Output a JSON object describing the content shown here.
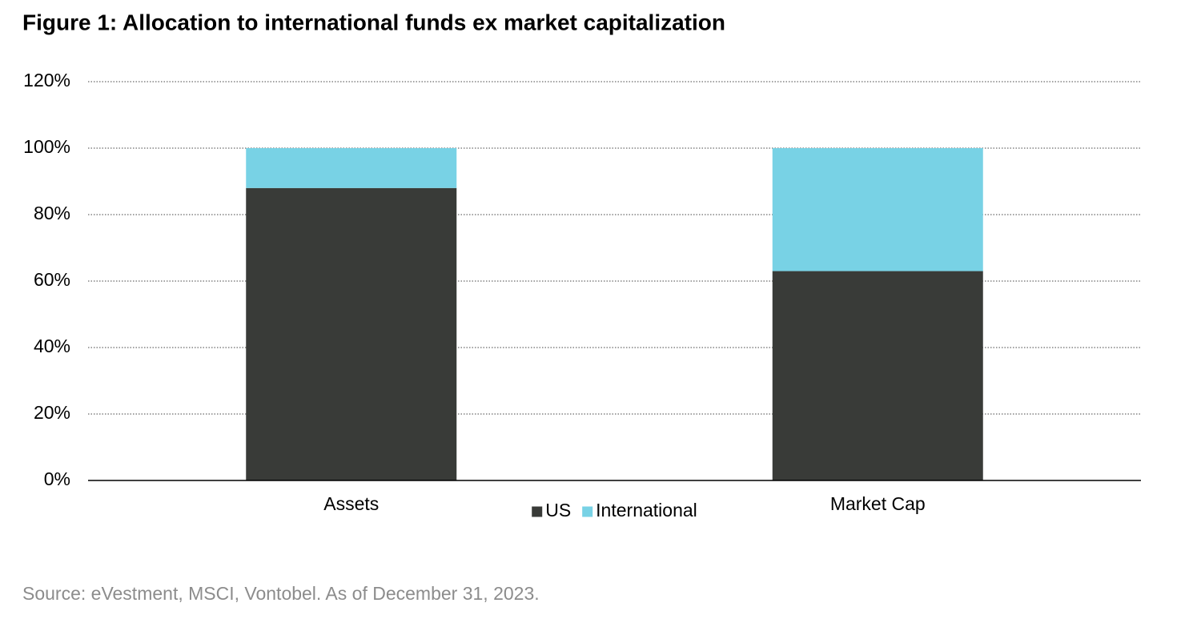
{
  "chart_data": {
    "type": "stacked_bar",
    "title": "Figure 1: Allocation to international funds ex market capitalization",
    "categories": [
      "Assets",
      "Market Cap"
    ],
    "series": [
      {
        "name": "US",
        "color": "#393b38",
        "values": [
          88,
          63
        ]
      },
      {
        "name": "International",
        "color": "#78d2e5",
        "values": [
          12,
          37
        ]
      }
    ],
    "ylim": [
      0,
      120
    ],
    "yticks": [
      {
        "value": 0,
        "label": "0%"
      },
      {
        "value": 20,
        "label": "20%"
      },
      {
        "value": 40,
        "label": "40%"
      },
      {
        "value": 60,
        "label": "60%"
      },
      {
        "value": 80,
        "label": "80%"
      },
      {
        "value": 100,
        "label": "100%"
      },
      {
        "value": 120,
        "label": "120%"
      }
    ],
    "grid": true,
    "legend": "bottom",
    "source": "Source: eVestment, MSCI, Vontobel. As of December 31, 2023."
  }
}
